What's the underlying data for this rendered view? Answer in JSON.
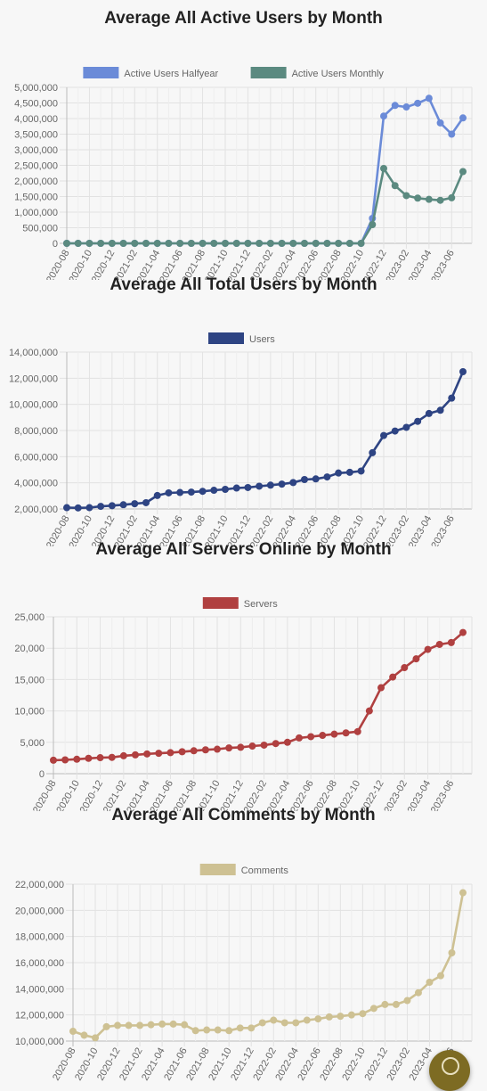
{
  "x_labels": [
    "2020-08",
    "2020-10",
    "2020-12",
    "2021-02",
    "2021-04",
    "2021-06",
    "2021-08",
    "2021-10",
    "2021-12",
    "2022-02",
    "2022-04",
    "2022-06",
    "2022-08",
    "2022-10",
    "2022-12",
    "2023-02",
    "2023-04",
    "2023-06"
  ],
  "chart_data": [
    {
      "type": "line",
      "title": "Average All Active Users by Month",
      "ylim": [
        0,
        5000000
      ],
      "yticks": [
        "0",
        "500,000",
        "1,000,000",
        "1,500,000",
        "2,000,000",
        "2,500,000",
        "3,000,000",
        "3,500,000",
        "4,000,000",
        "4,500,000",
        "5,000,000"
      ],
      "series": [
        {
          "name": "Active Users Halfyear",
          "color": "#6b8bd8",
          "values": [
            0,
            0,
            0,
            0,
            0,
            0,
            0,
            0,
            0,
            0,
            0,
            0,
            0,
            0,
            0,
            0,
            0,
            0,
            0,
            0,
            0,
            0,
            0,
            0,
            0,
            0,
            0,
            800000,
            4080000,
            4420000,
            4370000,
            4490000,
            4650000,
            3860000,
            3500000,
            4020000
          ]
        },
        {
          "name": "Active Users Monthly",
          "color": "#5b8a80",
          "values": [
            0,
            0,
            0,
            0,
            0,
            0,
            0,
            0,
            0,
            0,
            0,
            0,
            0,
            0,
            0,
            0,
            0,
            0,
            0,
            0,
            0,
            0,
            0,
            0,
            0,
            0,
            0,
            600000,
            2400000,
            1850000,
            1530000,
            1450000,
            1410000,
            1380000,
            1460000,
            2300000
          ]
        }
      ]
    },
    {
      "type": "line",
      "title": "Average All Total Users by Month",
      "ylim": [
        2000000,
        14000000
      ],
      "yticks": [
        "2,000,000",
        "4,000,000",
        "6,000,000",
        "8,000,000",
        "10,000,000",
        "12,000,000",
        "14,000,000"
      ],
      "series": [
        {
          "name": "Users",
          "color": "#2e4483",
          "values": [
            2100000,
            2080000,
            2100000,
            2200000,
            2250000,
            2320000,
            2400000,
            2480000,
            3030000,
            3230000,
            3260000,
            3290000,
            3350000,
            3430000,
            3500000,
            3600000,
            3640000,
            3740000,
            3820000,
            3900000,
            4020000,
            4250000,
            4300000,
            4450000,
            4750000,
            4800000,
            4900000,
            6300000,
            7620000,
            7960000,
            8240000,
            8700000,
            9300000,
            9550000,
            10480000,
            12500000
          ]
        }
      ]
    },
    {
      "type": "line",
      "title": "Average All Servers Online by Month",
      "ylim": [
        0,
        25000
      ],
      "yticks": [
        "0",
        "5,000",
        "10,000",
        "15,000",
        "20,000",
        "25,000"
      ],
      "series": [
        {
          "name": "Servers",
          "color": "#b04040",
          "values": [
            2150,
            2200,
            2300,
            2450,
            2550,
            2600,
            2850,
            3000,
            3150,
            3250,
            3350,
            3500,
            3650,
            3800,
            3900,
            4100,
            4200,
            4400,
            4550,
            4800,
            5000,
            5700,
            5900,
            6100,
            6300,
            6500,
            6700,
            10000,
            13700,
            15400,
            16900,
            18300,
            19800,
            20600,
            20900,
            22500
          ]
        }
      ]
    },
    {
      "type": "line",
      "title": "Average All Comments by Month",
      "ylim": [
        10000000,
        22000000
      ],
      "yticks": [
        "10,000,000",
        "12,000,000",
        "14,000,000",
        "16,000,000",
        "18,000,000",
        "20,000,000",
        "22,000,000"
      ],
      "series": [
        {
          "name": "Comments",
          "color": "#cec193",
          "values": [
            10750000,
            10450000,
            10250000,
            11100000,
            11200000,
            11200000,
            11200000,
            11250000,
            11300000,
            11300000,
            11250000,
            10800000,
            10850000,
            10850000,
            10800000,
            11000000,
            11000000,
            11400000,
            11600000,
            11400000,
            11400000,
            11600000,
            11700000,
            11850000,
            11900000,
            12000000,
            12100000,
            12500000,
            12800000,
            12800000,
            13100000,
            13700000,
            14500000,
            15000000,
            16750000,
            21350000
          ]
        }
      ]
    }
  ]
}
